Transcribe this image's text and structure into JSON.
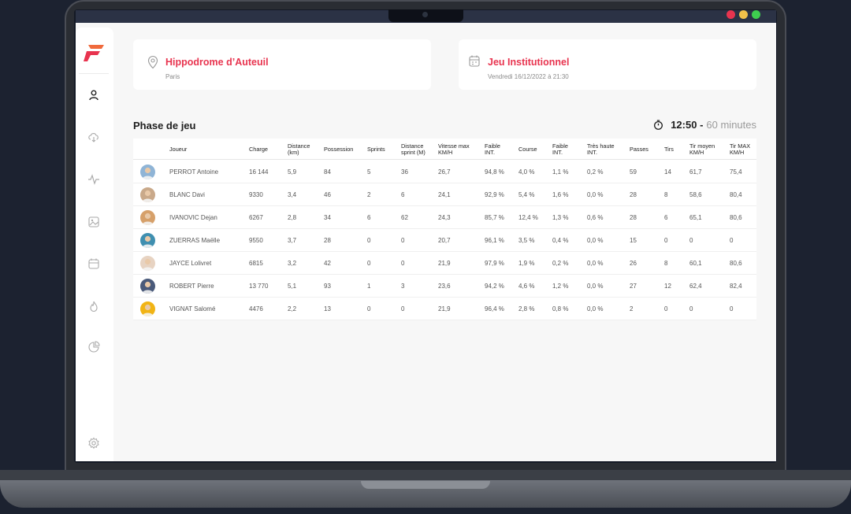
{
  "location": {
    "title": "Hippodrome d’Auteuil",
    "subtitle": "Paris"
  },
  "event": {
    "title": "Jeu Institutionnel",
    "subtitle": "Vendredi 16/12/2022 à 21:30"
  },
  "phase": {
    "title": "Phase de jeu",
    "time": "12:50 -",
    "duration": "60 minutes"
  },
  "table": {
    "headers": [
      [
        "Joueur"
      ],
      [
        "Charge"
      ],
      [
        "Distance",
        "(km)"
      ],
      [
        "Possession"
      ],
      [
        "Sprints"
      ],
      [
        "Distance",
        "sprint (M)"
      ],
      [
        "Vitesse max",
        "KM/H"
      ],
      [
        "Faible",
        "INT."
      ],
      [
        "Course"
      ],
      [
        "Faible",
        "INT."
      ],
      [
        "Très haute",
        "INT."
      ],
      [
        "Passes"
      ],
      [
        "Tirs"
      ],
      [
        "Tir moyen",
        "KM/H"
      ],
      [
        "Tir MAX",
        "KM/H"
      ]
    ],
    "rows": [
      [
        "PERROT Antoine",
        "16 144",
        "5,9",
        "84",
        "5",
        "36",
        "26,7",
        "94,8 %",
        "4,0 %",
        "1,1 %",
        "0,2 %",
        "59",
        "14",
        "61,7",
        "75,4"
      ],
      [
        "BLANC Davi",
        "9330",
        "3,4",
        "46",
        "2",
        "6",
        "24,1",
        "92,9 %",
        "5,4 %",
        "1,6 %",
        "0,0 %",
        "28",
        "8",
        "58,6",
        "80,4"
      ],
      [
        "IVANOVIC Dejan",
        "6267",
        "2,8",
        "34",
        "6",
        "62",
        "24,3",
        "85,7 %",
        "12,4 %",
        "1,3 %",
        "0,6 %",
        "28",
        "6",
        "65,1",
        "80,6"
      ],
      [
        "ZUERRAS Maëlle",
        "9550",
        "3,7",
        "28",
        "0",
        "0",
        "20,7",
        "96,1 %",
        "3,5 %",
        "0,4 %",
        "0,0 %",
        "15",
        "0",
        "0",
        "0"
      ],
      [
        "JAYCE Lolivret",
        "6815",
        "3,2",
        "42",
        "0",
        "0",
        "21,9",
        "97,9 %",
        "1,9 %",
        "0,2 %",
        "0,0 %",
        "26",
        "8",
        "60,1",
        "80,6"
      ],
      [
        "ROBERT Pierre",
        "13 770",
        "5,1",
        "93",
        "1",
        "3",
        "23,6",
        "94,2 %",
        "4,6 %",
        "1,2 %",
        "0,0 %",
        "27",
        "12",
        "62,4",
        "82,4"
      ],
      [
        "VIGNAT Salomé",
        "4476",
        "2,2",
        "13",
        "0",
        "0",
        "21,9",
        "96,4 %",
        "2,8 %",
        "0,8 %",
        "0,0 %",
        "2",
        "0",
        "0",
        "0"
      ]
    ],
    "avatar_colors": [
      "#8fb4d6",
      "#c9a98a",
      "#d6a06a",
      "#3f8fb0",
      "#e7d3c2",
      "#4a5a7a",
      "#f1b415"
    ]
  },
  "sidebar": {
    "items": [
      "user-icon",
      "cloud-download-icon",
      "activity-icon",
      "image-icon",
      "calendar-icon",
      "flame-icon",
      "pie-chart-icon",
      "settings-icon"
    ]
  },
  "colors": {
    "accent": "#e8344f",
    "window_dots": [
      "#e8344f",
      "#f1c04a",
      "#3ecf4f"
    ]
  }
}
